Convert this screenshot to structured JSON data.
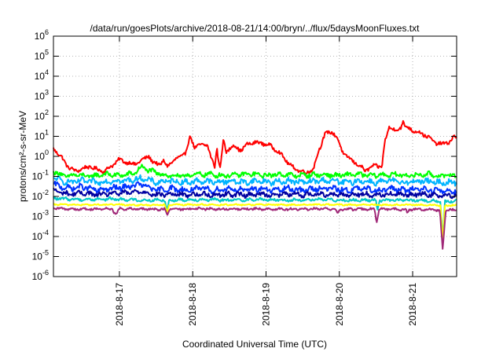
{
  "chart_data": {
    "type": "line",
    "title": "/data/run/goesPlots/archive/2018-08-21/14:00/bryn/../flux/5daysMoonFluxes.txt",
    "xlabel": "Coordinated Universal Time (UTC)",
    "ylabel": "protons/cm²-s-sr-MeV",
    "y_scale": "log",
    "ylim": [
      1e-06,
      1000000.0
    ],
    "xlim": [
      16.1,
      21.6
    ],
    "grid": true,
    "x_ticks": [
      {
        "value": 17,
        "label": "2018-8-17"
      },
      {
        "value": 18,
        "label": "2018-8-18"
      },
      {
        "value": 19,
        "label": "2018-8-19"
      },
      {
        "value": 20,
        "label": "2018-8-20"
      },
      {
        "value": 21,
        "label": "2018-8-21"
      }
    ],
    "y_ticks": [
      {
        "value": 1e-06,
        "base": "10",
        "exp": "-6"
      },
      {
        "value": 1e-05,
        "base": "10",
        "exp": "-5"
      },
      {
        "value": 0.0001,
        "base": "10",
        "exp": "-4"
      },
      {
        "value": 0.001,
        "base": "10",
        "exp": "-3"
      },
      {
        "value": 0.01,
        "base": "10",
        "exp": "-2"
      },
      {
        "value": 0.1,
        "base": "10",
        "exp": "-1"
      },
      {
        "value": 1,
        "base": "10",
        "exp": "0"
      },
      {
        "value": 10,
        "base": "10",
        "exp": "1"
      },
      {
        "value": 100,
        "base": "10",
        "exp": "2"
      },
      {
        "value": 1000,
        "base": "10",
        "exp": "3"
      },
      {
        "value": 10000,
        "base": "10",
        "exp": "4"
      },
      {
        "value": 100000,
        "base": "10",
        "exp": "5"
      },
      {
        "value": 1000000,
        "base": "10",
        "exp": "6"
      }
    ],
    "series": [
      {
        "color": "#ff0000",
        "noise": 0.08,
        "points": [
          [
            16.1,
            2.5
          ],
          [
            16.2,
            1.0
          ],
          [
            16.3,
            0.3
          ],
          [
            16.4,
            0.18
          ],
          [
            16.5,
            0.25
          ],
          [
            16.6,
            0.3
          ],
          [
            16.7,
            0.22
          ],
          [
            16.8,
            0.18
          ],
          [
            16.9,
            0.35
          ],
          [
            17.0,
            0.7
          ],
          [
            17.1,
            0.5
          ],
          [
            17.2,
            0.4
          ],
          [
            17.3,
            0.6
          ],
          [
            17.4,
            1.1
          ],
          [
            17.45,
            0.5
          ],
          [
            17.55,
            0.4
          ],
          [
            17.6,
            0.6
          ],
          [
            17.65,
            0.3
          ],
          [
            17.7,
            0.5
          ],
          [
            17.8,
            0.8
          ],
          [
            17.9,
            1.5
          ],
          [
            17.97,
            10
          ],
          [
            18.02,
            3
          ],
          [
            18.1,
            3.5
          ],
          [
            18.2,
            4
          ],
          [
            18.25,
            0.8
          ],
          [
            18.3,
            0.3
          ],
          [
            18.33,
            3
          ],
          [
            18.35,
            0.6
          ],
          [
            18.38,
            0.3
          ],
          [
            18.42,
            9
          ],
          [
            18.45,
            1.5
          ],
          [
            18.5,
            2.5
          ],
          [
            18.55,
            3.5
          ],
          [
            18.65,
            2
          ],
          [
            18.75,
            4
          ],
          [
            18.85,
            5
          ],
          [
            18.95,
            4.5
          ],
          [
            19.05,
            3.5
          ],
          [
            19.15,
            2
          ],
          [
            19.25,
            0.8
          ],
          [
            19.35,
            0.3
          ],
          [
            19.45,
            0.2
          ],
          [
            19.55,
            0.15
          ],
          [
            19.65,
            0.25
          ],
          [
            19.72,
            2
          ],
          [
            19.8,
            12
          ],
          [
            19.86,
            16
          ],
          [
            19.92,
            15
          ],
          [
            19.97,
            8
          ],
          [
            20.05,
            1.5
          ],
          [
            20.15,
            0.7
          ],
          [
            20.25,
            0.4
          ],
          [
            20.35,
            0.2
          ],
          [
            20.45,
            0.3
          ],
          [
            20.5,
            0.35
          ],
          [
            20.58,
            0.3
          ],
          [
            20.62,
            5
          ],
          [
            20.68,
            30
          ],
          [
            20.72,
            25
          ],
          [
            20.76,
            20
          ],
          [
            20.8,
            20
          ],
          [
            20.84,
            30
          ],
          [
            20.87,
            55
          ],
          [
            20.9,
            30
          ],
          [
            20.95,
            25
          ],
          [
            21.0,
            20
          ],
          [
            21.1,
            15
          ],
          [
            21.2,
            10
          ],
          [
            21.3,
            5
          ],
          [
            21.4,
            4
          ],
          [
            21.48,
            5
          ],
          [
            21.52,
            6
          ],
          [
            21.56,
            9
          ],
          [
            21.6,
            9
          ]
        ]
      },
      {
        "color": "#00ff00",
        "noise": 0.1,
        "points": [
          [
            16.1,
            0.18
          ],
          [
            16.2,
            0.12
          ],
          [
            16.3,
            0.1
          ],
          [
            16.4,
            0.12
          ],
          [
            16.6,
            0.1
          ],
          [
            16.8,
            0.13
          ],
          [
            17.0,
            0.11
          ],
          [
            17.2,
            0.14
          ],
          [
            17.3,
            0.3
          ],
          [
            17.4,
            0.2
          ],
          [
            17.6,
            0.12
          ],
          [
            17.8,
            0.1
          ],
          [
            18.0,
            0.12
          ],
          [
            18.2,
            0.13
          ],
          [
            18.4,
            0.11
          ],
          [
            18.6,
            0.12
          ],
          [
            18.8,
            0.13
          ],
          [
            19.0,
            0.11
          ],
          [
            19.2,
            0.13
          ],
          [
            19.4,
            0.11
          ],
          [
            19.6,
            0.12
          ],
          [
            19.8,
            0.12
          ],
          [
            20.0,
            0.11
          ],
          [
            20.2,
            0.13
          ],
          [
            20.4,
            0.11
          ],
          [
            20.6,
            0.12
          ],
          [
            20.8,
            0.12
          ],
          [
            21.0,
            0.11
          ],
          [
            21.2,
            0.13
          ],
          [
            21.4,
            0.1
          ],
          [
            21.5,
            0.12
          ],
          [
            21.6,
            0.1
          ]
        ]
      },
      {
        "color": "#00b4ff",
        "noise": 0.12,
        "points": [
          [
            16.1,
            0.08
          ],
          [
            16.3,
            0.05
          ],
          [
            16.5,
            0.06
          ],
          [
            16.7,
            0.05
          ],
          [
            16.9,
            0.06
          ],
          [
            17.1,
            0.06
          ],
          [
            17.3,
            0.08
          ],
          [
            17.5,
            0.05
          ],
          [
            17.7,
            0.06
          ],
          [
            17.9,
            0.05
          ],
          [
            18.1,
            0.06
          ],
          [
            18.3,
            0.05
          ],
          [
            18.5,
            0.06
          ],
          [
            18.7,
            0.05
          ],
          [
            18.9,
            0.06
          ],
          [
            19.1,
            0.05
          ],
          [
            19.3,
            0.06
          ],
          [
            19.5,
            0.05
          ],
          [
            19.7,
            0.06
          ],
          [
            19.9,
            0.06
          ],
          [
            20.1,
            0.05
          ],
          [
            20.3,
            0.06
          ],
          [
            20.5,
            0.05
          ],
          [
            20.7,
            0.06
          ],
          [
            20.9,
            0.05
          ],
          [
            21.1,
            0.06
          ],
          [
            21.3,
            0.05
          ],
          [
            21.5,
            0.05
          ],
          [
            21.6,
            0.05
          ]
        ]
      },
      {
        "color": "#0032ff",
        "noise": 0.12,
        "points": [
          [
            16.1,
            0.04
          ],
          [
            16.3,
            0.025
          ],
          [
            16.5,
            0.03
          ],
          [
            16.7,
            0.02
          ],
          [
            16.9,
            0.025
          ],
          [
            17.1,
            0.03
          ],
          [
            17.3,
            0.04
          ],
          [
            17.5,
            0.02
          ],
          [
            17.7,
            0.025
          ],
          [
            17.9,
            0.02
          ],
          [
            18.1,
            0.025
          ],
          [
            18.3,
            0.02
          ],
          [
            18.5,
            0.025
          ],
          [
            18.7,
            0.02
          ],
          [
            18.9,
            0.025
          ],
          [
            19.1,
            0.02
          ],
          [
            19.3,
            0.025
          ],
          [
            19.5,
            0.02
          ],
          [
            19.7,
            0.025
          ],
          [
            19.9,
            0.025
          ],
          [
            20.1,
            0.02
          ],
          [
            20.3,
            0.025
          ],
          [
            20.5,
            0.02
          ],
          [
            20.7,
            0.025
          ],
          [
            20.9,
            0.02
          ],
          [
            21.1,
            0.025
          ],
          [
            21.3,
            0.02
          ],
          [
            21.5,
            0.018
          ],
          [
            21.6,
            0.02
          ]
        ]
      },
      {
        "color": "#0000a0",
        "noise": 0.1,
        "points": [
          [
            16.1,
            0.02
          ],
          [
            16.3,
            0.013
          ],
          [
            16.5,
            0.015
          ],
          [
            16.7,
            0.012
          ],
          [
            16.9,
            0.014
          ],
          [
            17.1,
            0.015
          ],
          [
            17.3,
            0.018
          ],
          [
            17.5,
            0.012
          ],
          [
            17.7,
            0.013
          ],
          [
            17.9,
            0.012
          ],
          [
            18.1,
            0.013
          ],
          [
            18.3,
            0.012
          ],
          [
            18.5,
            0.013
          ],
          [
            18.7,
            0.012
          ],
          [
            18.9,
            0.013
          ],
          [
            19.1,
            0.012
          ],
          [
            19.3,
            0.013
          ],
          [
            19.5,
            0.012
          ],
          [
            19.7,
            0.013
          ],
          [
            19.9,
            0.013
          ],
          [
            20.1,
            0.012
          ],
          [
            20.3,
            0.013
          ],
          [
            20.5,
            0.012
          ],
          [
            20.7,
            0.013
          ],
          [
            20.9,
            0.012
          ],
          [
            21.1,
            0.013
          ],
          [
            21.3,
            0.012
          ],
          [
            21.5,
            0.011
          ],
          [
            21.6,
            0.012
          ]
        ]
      },
      {
        "color": "#00c8c8",
        "noise": 0.06,
        "points": [
          [
            16.1,
            0.008
          ],
          [
            16.5,
            0.007
          ],
          [
            16.9,
            0.0075
          ],
          [
            17.3,
            0.0065
          ],
          [
            17.62,
            0.0065
          ],
          [
            17.65,
            0.002
          ],
          [
            17.68,
            0.0065
          ],
          [
            18.1,
            0.007
          ],
          [
            18.5,
            0.0065
          ],
          [
            18.9,
            0.007
          ],
          [
            19.3,
            0.0065
          ],
          [
            19.7,
            0.007
          ],
          [
            20.1,
            0.0065
          ],
          [
            20.5,
            0.0065
          ],
          [
            20.52,
            0.002
          ],
          [
            20.55,
            0.0065
          ],
          [
            20.9,
            0.0065
          ],
          [
            21.3,
            0.006
          ],
          [
            21.38,
            0.0055
          ],
          [
            21.41,
            6e-05
          ],
          [
            21.44,
            0.0055
          ],
          [
            21.6,
            0.006
          ]
        ]
      },
      {
        "color": "#ffff00",
        "noise": 0.03,
        "points": [
          [
            16.1,
            0.004
          ],
          [
            16.5,
            0.0038
          ],
          [
            16.9,
            0.0039
          ],
          [
            17.3,
            0.0037
          ],
          [
            17.62,
            0.0038
          ],
          [
            17.65,
            0.0015
          ],
          [
            17.68,
            0.0038
          ],
          [
            18.1,
            0.0039
          ],
          [
            18.5,
            0.0038
          ],
          [
            18.9,
            0.0039
          ],
          [
            19.3,
            0.0038
          ],
          [
            19.7,
            0.0039
          ],
          [
            20.1,
            0.0038
          ],
          [
            20.5,
            0.0038
          ],
          [
            20.9,
            0.0038
          ],
          [
            21.3,
            0.0037
          ],
          [
            21.38,
            0.0035
          ],
          [
            21.41,
            4e-05
          ],
          [
            21.44,
            0.0035
          ],
          [
            21.6,
            0.0036
          ]
        ]
      },
      {
        "color": "#a02878",
        "noise": 0.05,
        "points": [
          [
            16.1,
            0.0025
          ],
          [
            16.5,
            0.0023
          ],
          [
            16.9,
            0.0024
          ],
          [
            16.95,
            0.0012
          ],
          [
            17.0,
            0.0024
          ],
          [
            17.3,
            0.0023
          ],
          [
            17.62,
            0.0023
          ],
          [
            17.65,
            0.0011
          ],
          [
            17.68,
            0.0023
          ],
          [
            18.1,
            0.0024
          ],
          [
            18.5,
            0.0023
          ],
          [
            18.9,
            0.0024
          ],
          [
            19.3,
            0.0023
          ],
          [
            19.7,
            0.0024
          ],
          [
            19.95,
            0.0023
          ],
          [
            19.98,
            0.0013
          ],
          [
            20.01,
            0.0023
          ],
          [
            20.3,
            0.0023
          ],
          [
            20.48,
            0.0023
          ],
          [
            20.51,
            0.0005
          ],
          [
            20.54,
            0.0023
          ],
          [
            20.9,
            0.0023
          ],
          [
            20.93,
            0.0013
          ],
          [
            20.96,
            0.0023
          ],
          [
            21.3,
            0.0022
          ],
          [
            21.37,
            0.002
          ],
          [
            21.41,
            2e-05
          ],
          [
            21.45,
            0.002
          ],
          [
            21.6,
            0.0022
          ]
        ]
      }
    ]
  }
}
